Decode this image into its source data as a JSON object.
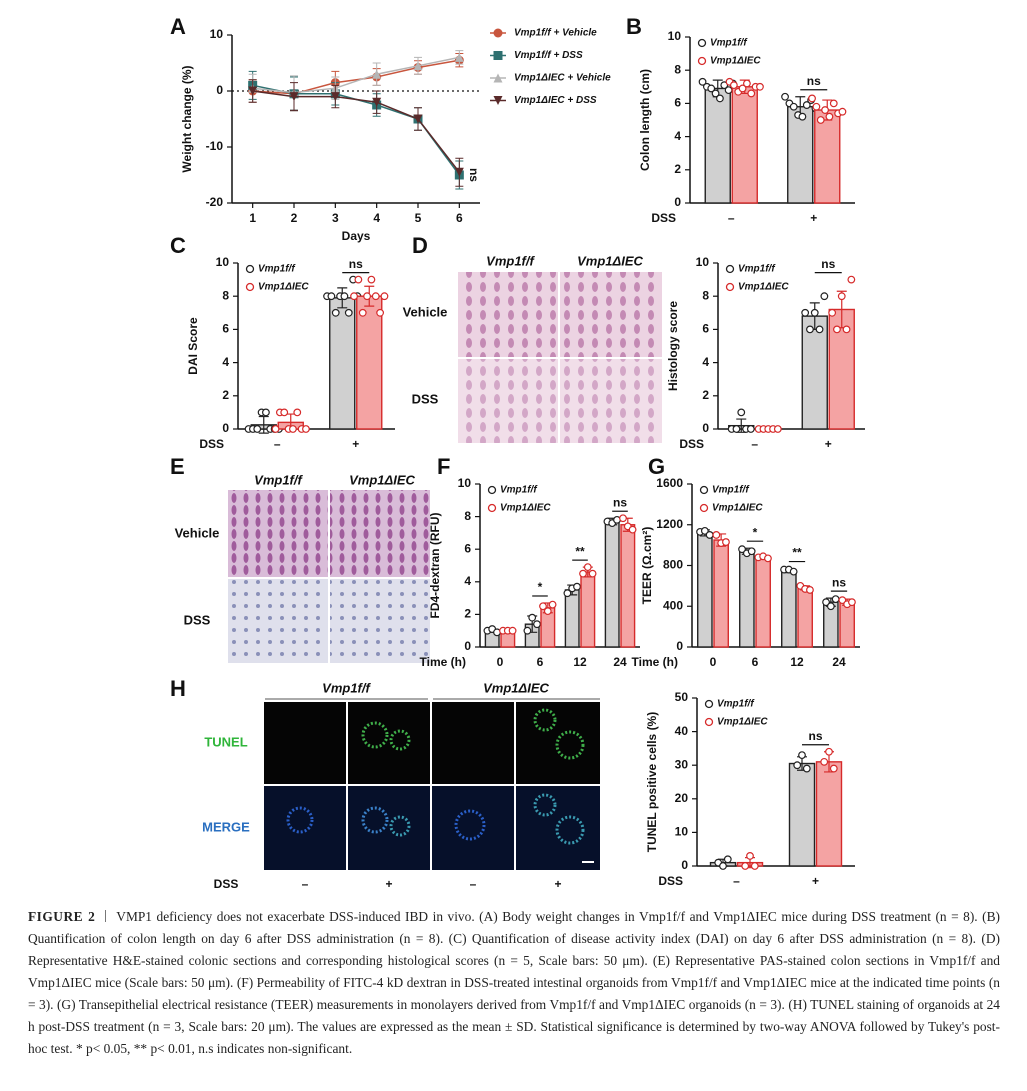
{
  "panel_labels": [
    "A",
    "B",
    "C",
    "D",
    "E",
    "F",
    "G",
    "H"
  ],
  "chart_data": [
    {
      "type": "line",
      "xlabel": "Days",
      "ylabel": "Weight change (%)",
      "x": [
        1,
        2,
        3,
        4,
        5,
        6
      ],
      "xlim": [
        0.5,
        6.5
      ],
      "xticks": [
        1,
        2,
        3,
        4,
        5,
        6
      ],
      "ylim": [
        -20,
        10
      ],
      "yticks": [
        -20,
        -10,
        0,
        10
      ],
      "hline": 0,
      "annotation": "ns",
      "legend": "right",
      "series": [
        {
          "name": "Vmp1f/f + Vehicle",
          "color": "#c8553d",
          "marker": "circle",
          "values": [
            0,
            -0.5,
            1.5,
            2.5,
            4.2,
            5.5
          ],
          "errors": [
            2,
            3,
            2,
            1.5,
            1.2,
            1.2
          ]
        },
        {
          "name": "Vmp1f/f + DSS",
          "color": "#2e7070",
          "marker": "square",
          "values": [
            1,
            -0.5,
            -0.5,
            -2.5,
            -5,
            -15
          ],
          "errors": [
            2.5,
            3,
            2,
            2,
            2,
            2.5
          ]
        },
        {
          "name": "Vmp1ΔIEC + Vehicle",
          "color": "#b5b5b5",
          "marker": "triangle",
          "values": [
            0.5,
            -0.3,
            0.5,
            3,
            4.5,
            6
          ],
          "errors": [
            2.5,
            3,
            2,
            2,
            1.5,
            1.2
          ]
        },
        {
          "name": "Vmp1ΔIEC + DSS",
          "color": "#5a2a2a",
          "marker": "triangle-down",
          "values": [
            0,
            -1,
            -1,
            -2,
            -5,
            -14.5
          ],
          "errors": [
            2,
            2.5,
            2,
            2,
            2,
            2.5
          ]
        }
      ]
    },
    {
      "type": "bar",
      "xlabel": "DSS",
      "ylabel": "Colon length (cm)",
      "categories": [
        "–",
        "+"
      ],
      "ylim": [
        0,
        10
      ],
      "yticks": [
        0,
        2,
        4,
        6,
        8,
        10
      ],
      "legend": "upper left",
      "significance": [
        null,
        "ns"
      ],
      "series": [
        {
          "name": "Vmp1f/f",
          "color": "#d0d0d0",
          "edgecolor": "#222222",
          "values": [
            6.9,
            5.8
          ],
          "errors": [
            0.5,
            0.6
          ],
          "points": [
            [
              7.3,
              7.0,
              6.9,
              6.6,
              6.3,
              7.1,
              6.8,
              7.2
            ],
            [
              6.4,
              6.0,
              5.8,
              5.3,
              5.2,
              5.9,
              6.2,
              5.7
            ]
          ]
        },
        {
          "name": "Vmp1ΔIEC",
          "color": "#f4a3a3",
          "edgecolor": "#d62a2a",
          "values": [
            7.0,
            5.6
          ],
          "errors": [
            0.4,
            0.6
          ],
          "points": [
            [
              7.3,
              7.1,
              6.7,
              6.9,
              7.2,
              6.6,
              7.0,
              7.0
            ],
            [
              6.3,
              5.8,
              5.0,
              5.6,
              5.2,
              6.0,
              5.4,
              5.5
            ]
          ]
        }
      ]
    },
    {
      "type": "bar",
      "xlabel": "DSS",
      "ylabel": "DAI Score",
      "categories": [
        "–",
        "+"
      ],
      "ylim": [
        0,
        10
      ],
      "yticks": [
        0,
        2,
        4,
        6,
        8,
        10
      ],
      "legend": "upper left",
      "significance": [
        null,
        "ns"
      ],
      "series": [
        {
          "name": "Vmp1f/f",
          "color": "#d0d0d0",
          "edgecolor": "#222222",
          "values": [
            0.25,
            7.9
          ],
          "errors": [
            0.5,
            0.6
          ],
          "points": [
            [
              0,
              0,
              0,
              1,
              1,
              0,
              0,
              0
            ],
            [
              8,
              8,
              7,
              8,
              8,
              7,
              9,
              8
            ]
          ]
        },
        {
          "name": "Vmp1ΔIEC",
          "color": "#f4a3a3",
          "edgecolor": "#d62a2a",
          "values": [
            0.4,
            8.0
          ],
          "errors": [
            0.5,
            0.6
          ],
          "points": [
            [
              0,
              1,
              1,
              0,
              0,
              1,
              0,
              0
            ],
            [
              8,
              9,
              7,
              8,
              9,
              8,
              7,
              8
            ]
          ]
        }
      ]
    },
    {
      "type": "bar",
      "xlabel": "DSS",
      "ylabel": "Histology score",
      "categories": [
        "–",
        "+"
      ],
      "ylim": [
        0,
        10
      ],
      "yticks": [
        0,
        2,
        4,
        6,
        8,
        10
      ],
      "legend": "upper left",
      "significance": [
        null,
        "ns"
      ],
      "series": [
        {
          "name": "Vmp1f/f",
          "color": "#d0d0d0",
          "edgecolor": "#222222",
          "values": [
            0.2,
            6.8
          ],
          "errors": [
            0.4,
            0.8
          ],
          "points": [
            [
              0,
              0,
              1,
              0,
              0
            ],
            [
              7,
              6,
              7,
              6,
              8
            ]
          ]
        },
        {
          "name": "Vmp1ΔIEC",
          "color": "#f4a3a3",
          "edgecolor": "#d62a2a",
          "values": [
            0,
            7.2
          ],
          "errors": [
            0,
            1.1
          ],
          "points": [
            [
              0,
              0,
              0,
              0,
              0
            ],
            [
              7,
              6,
              8,
              6,
              9
            ]
          ]
        }
      ]
    },
    {
      "type": "bar",
      "xlabel": "Time (h)",
      "ylabel": "FD4-dextran (RFU)",
      "categories": [
        "0",
        "6",
        "12",
        "24"
      ],
      "ylim": [
        0,
        10
      ],
      "yticks": [
        0,
        2,
        4,
        6,
        8,
        10
      ],
      "legend": "upper left",
      "significance": [
        null,
        "*",
        "**",
        "ns"
      ],
      "series": [
        {
          "name": "Vmp1f/f",
          "color": "#d0d0d0",
          "edgecolor": "#222222",
          "values": [
            1,
            1.4,
            3.5,
            7.7
          ],
          "errors": [
            0.1,
            0.5,
            0.3,
            0.2
          ],
          "points": [
            [
              1,
              1.1,
              0.9
            ],
            [
              1.0,
              1.8,
              1.4
            ],
            [
              3.3,
              3.6,
              3.7
            ],
            [
              7.7,
              7.6,
              7.8
            ]
          ]
        },
        {
          "name": "Vmp1ΔIEC",
          "color": "#f4a3a3",
          "edgecolor": "#d62a2a",
          "values": [
            1,
            2.4,
            4.6,
            7.5
          ],
          "errors": [
            0.1,
            0.3,
            0.3,
            0.4
          ],
          "points": [
            [
              1,
              1,
              1
            ],
            [
              2.5,
              2.2,
              2.6
            ],
            [
              4.5,
              4.9,
              4.5
            ],
            [
              7.9,
              7.4,
              7.2
            ]
          ]
        }
      ]
    },
    {
      "type": "bar",
      "xlabel": "Time (h)",
      "ylabel": "TEER (Ω.cm²)",
      "categories": [
        "0",
        "6",
        "12",
        "24"
      ],
      "ylim": [
        0,
        1600
      ],
      "yticks": [
        0,
        400,
        800,
        1200,
        1600
      ],
      "legend": "upper left",
      "significance": [
        null,
        "*",
        "**",
        "ns"
      ],
      "series": [
        {
          "name": "Vmp1f/f",
          "color": "#d0d0d0",
          "edgecolor": "#222222",
          "values": [
            1120,
            940,
            750,
            440
          ],
          "errors": [
            30,
            30,
            20,
            40
          ],
          "points": [
            [
              1130,
              1140,
              1100
            ],
            [
              960,
              920,
              940
            ],
            [
              760,
              760,
              740
            ],
            [
              440,
              400,
              470
            ]
          ]
        },
        {
          "name": "Vmp1ΔIEC",
          "color": "#f4a3a3",
          "edgecolor": "#d62a2a",
          "values": [
            1050,
            880,
            580,
            440
          ],
          "errors": [
            60,
            20,
            20,
            30
          ],
          "points": [
            [
              1100,
              1020,
              1030
            ],
            [
              880,
              890,
              870
            ],
            [
              600,
              570,
              560
            ],
            [
              460,
              420,
              440
            ]
          ]
        }
      ]
    },
    {
      "type": "bar",
      "xlabel": "DSS",
      "ylabel": "TUNEL positive cells (%)",
      "categories": [
        "–",
        "+"
      ],
      "ylim": [
        0,
        50
      ],
      "yticks": [
        0,
        10,
        20,
        30,
        40,
        50
      ],
      "legend": "upper left",
      "significance": [
        null,
        "ns"
      ],
      "series": [
        {
          "name": "Vmp1f/f",
          "color": "#d0d0d0",
          "edgecolor": "#222222",
          "values": [
            1,
            30.5
          ],
          "errors": [
            1,
            2
          ],
          "points": [
            [
              1,
              0,
              2
            ],
            [
              30,
              33,
              29
            ]
          ]
        },
        {
          "name": "Vmp1ΔIEC",
          "color": "#f4a3a3",
          "edgecolor": "#d62a2a",
          "values": [
            1,
            31
          ],
          "errors": [
            1.5,
            3
          ],
          "points": [
            [
              0,
              3,
              0
            ],
            [
              31,
              34,
              29
            ]
          ]
        }
      ]
    }
  ],
  "images": {
    "D": {
      "columns": [
        "Vmp1f/f",
        "Vmp1ΔIEC"
      ],
      "rows": [
        "Vehicle",
        "DSS"
      ]
    },
    "E": {
      "columns": [
        "Vmp1f/f",
        "Vmp1ΔIEC"
      ],
      "rows": [
        "Vehicle",
        "DSS"
      ]
    },
    "H": {
      "columns": [
        "Vmp1f/f",
        "Vmp1ΔIEC"
      ],
      "rows": [
        "TUNEL",
        "MERGE"
      ],
      "condition_label": "DSS",
      "conditions": [
        "–",
        "+",
        "–",
        "+"
      ]
    }
  },
  "caption": {
    "label": "FIGURE 2",
    "text": "VMP1 deficiency does not exacerbate DSS-induced IBD in vivo. (A) Body weight changes in Vmp1f/f and Vmp1ΔIEC mice during DSS treatment (n = 8). (B) Quantification of colon length on day 6 after DSS administration (n = 8). (C) Quantification of disease activity index (DAI) on day 6 after DSS administration (n = 8). (D) Representative H&E-stained colonic sections and corresponding histological scores (n = 5, Scale bars: 50 μm). (E) Representative PAS-stained colon sections in Vmp1f/f and Vmp1ΔIEC mice (Scale bars: 50 μm). (F) Permeability of FITC-4 kD dextran in DSS-treated intestinal organoids from Vmp1f/f and Vmp1ΔIEC mice at the indicated time points (n = 3). (G) Transepithelial electrical resistance (TEER) measurements in monolayers derived from Vmp1f/f and Vmp1ΔIEC organoids (n = 3). (H) TUNEL staining of organoids at 24 h post-DSS treatment (n = 3, Scale bars: 20 μm). The values are expressed as the mean ± SD. Statistical significance is determined by two-way ANOVA followed by Tukey's post-hoc test. * p< 0.05, ** p< 0.01, n.s indicates non-significant."
  }
}
